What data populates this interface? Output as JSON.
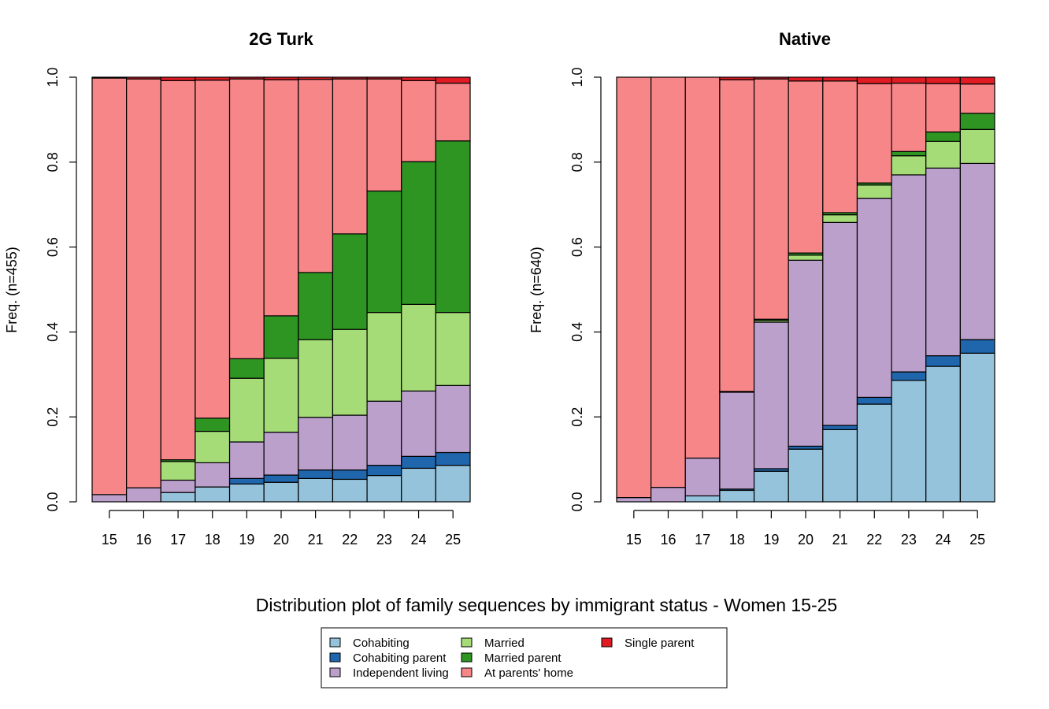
{
  "caption": "Distribution plot of family sequences by immigrant status - Women 15-25",
  "states": [
    {
      "name": "Cohabiting",
      "color": "#95c3dc"
    },
    {
      "name": "Cohabiting parent",
      "color": "#1f66ad"
    },
    {
      "name": "Independent living",
      "color": "#bca0cc"
    },
    {
      "name": "Married",
      "color": "#a6dc78"
    },
    {
      "name": "Married parent",
      "color": "#2e9422"
    },
    {
      "name": "At parents' home",
      "color": "#f78689"
    },
    {
      "name": "Single parent",
      "color": "#e01b24"
    }
  ],
  "chart_data": [
    {
      "type": "bar",
      "stacked": true,
      "title": "2G Turk",
      "ylabel": "Freq. (n=455)",
      "xlabel": "",
      "ylim": [
        0,
        1
      ],
      "yticks": [
        "0.0",
        "0.2",
        "0.4",
        "0.6",
        "0.8",
        "1.0"
      ],
      "categories": [
        "15",
        "16",
        "17",
        "18",
        "19",
        "20",
        "21",
        "22",
        "23",
        "24",
        "25"
      ],
      "series": [
        {
          "name": "Cohabiting",
          "values": [
            0.0,
            0.0,
            0.022,
            0.035,
            0.042,
            0.046,
            0.055,
            0.053,
            0.062,
            0.079,
            0.086
          ]
        },
        {
          "name": "Cohabiting parent",
          "values": [
            0.0,
            0.0,
            0.0,
            0.0,
            0.013,
            0.017,
            0.02,
            0.022,
            0.024,
            0.028,
            0.03
          ]
        },
        {
          "name": "Independent living",
          "values": [
            0.017,
            0.033,
            0.029,
            0.057,
            0.086,
            0.101,
            0.124,
            0.129,
            0.151,
            0.154,
            0.158
          ]
        },
        {
          "name": "Married",
          "values": [
            0.0,
            0.0,
            0.044,
            0.074,
            0.15,
            0.174,
            0.183,
            0.202,
            0.209,
            0.204,
            0.172
          ]
        },
        {
          "name": "Married parent",
          "values": [
            0.0,
            0.0,
            0.004,
            0.031,
            0.046,
            0.1,
            0.158,
            0.225,
            0.286,
            0.336,
            0.404
          ]
        },
        {
          "name": "At parents' home",
          "values": [
            0.981,
            0.963,
            0.893,
            0.796,
            0.659,
            0.556,
            0.455,
            0.365,
            0.264,
            0.191,
            0.136
          ]
        },
        {
          "name": "Single parent",
          "values": [
            0.002,
            0.004,
            0.008,
            0.007,
            0.004,
            0.006,
            0.005,
            0.004,
            0.004,
            0.008,
            0.014
          ]
        }
      ]
    },
    {
      "type": "bar",
      "stacked": true,
      "title": "Native",
      "ylabel": "Freq. (n=640)",
      "xlabel": "",
      "ylim": [
        0,
        1
      ],
      "yticks": [
        "0.0",
        "0.2",
        "0.4",
        "0.6",
        "0.8",
        "1.0"
      ],
      "categories": [
        "15",
        "16",
        "17",
        "18",
        "19",
        "20",
        "21",
        "22",
        "23",
        "24",
        "25"
      ],
      "series": [
        {
          "name": "Cohabiting",
          "values": [
            0.0,
            0.0,
            0.014,
            0.027,
            0.072,
            0.124,
            0.17,
            0.23,
            0.286,
            0.319,
            0.35
          ]
        },
        {
          "name": "Cohabiting parent",
          "values": [
            0.0,
            0.0,
            0.0,
            0.003,
            0.006,
            0.007,
            0.01,
            0.016,
            0.02,
            0.025,
            0.032
          ]
        },
        {
          "name": "Independent living",
          "values": [
            0.01,
            0.034,
            0.089,
            0.228,
            0.345,
            0.438,
            0.478,
            0.469,
            0.464,
            0.442,
            0.415
          ]
        },
        {
          "name": "Married",
          "values": [
            0.0,
            0.0,
            0.0,
            0.0,
            0.004,
            0.012,
            0.018,
            0.031,
            0.045,
            0.063,
            0.08
          ]
        },
        {
          "name": "Married parent",
          "values": [
            0.0,
            0.0,
            0.0,
            0.002,
            0.003,
            0.005,
            0.005,
            0.005,
            0.01,
            0.022,
            0.038
          ]
        },
        {
          "name": "At parents' home",
          "values": [
            0.99,
            0.966,
            0.897,
            0.734,
            0.566,
            0.405,
            0.31,
            0.234,
            0.161,
            0.114,
            0.069
          ]
        },
        {
          "name": "Single parent",
          "values": [
            0.0,
            0.0,
            0.0,
            0.006,
            0.004,
            0.009,
            0.009,
            0.015,
            0.014,
            0.015,
            0.016
          ]
        }
      ]
    }
  ]
}
